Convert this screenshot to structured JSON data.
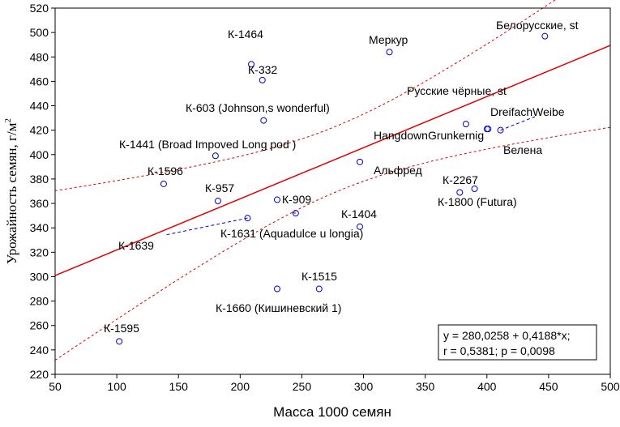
{
  "chart_data": {
    "type": "scatter",
    "xlabel": "Масса 1000 семян",
    "ylabel_main": "Урожайность семян, г/м",
    "ylabel_sup": "2",
    "xlim": [
      50,
      500
    ],
    "ylim": [
      220,
      520
    ],
    "xticks": [
      "50",
      "100",
      "150",
      "200",
      "250",
      "300",
      "350",
      "400",
      "450",
      "500"
    ],
    "yticks": [
      "220",
      "240",
      "260",
      "280",
      "300",
      "320",
      "340",
      "360",
      "380",
      "400",
      "420",
      "440",
      "460",
      "480",
      "500",
      "520"
    ],
    "grid": false,
    "colors": {
      "points": "#0000cc",
      "regression": "#e00000",
      "confidence": "#e00000",
      "leader": "#0000cc"
    },
    "regression": {
      "intercept": 280.0258,
      "slope": 0.4188
    },
    "equation_lines": [
      "y = 280,0258 + 0,4188*x;",
      "r = 0,5381; p = 0,0098"
    ],
    "points": [
      {
        "label": "К-1464",
        "x": 209,
        "y": 474
      },
      {
        "label": "К-332",
        "x": 218,
        "y": 461
      },
      {
        "label": "К-603 (Johnson,s wonderful)",
        "x": 219,
        "y": 428
      },
      {
        "label": "Меркур",
        "x": 321,
        "y": 484
      },
      {
        "label": "Белорусские, st",
        "x": 447,
        "y": 497
      },
      {
        "label": "Русские чёрные, st",
        "x": 383,
        "y": 425
      },
      {
        "label": "DreifachWeibe",
        "x": 411,
        "y": 420
      },
      {
        "label": "HangdownGrunkernig",
        "x": 400,
        "y": 421
      },
      {
        "label": "Велена",
        "x": 401,
        "y": 421
      },
      {
        "label": "К-1441 (Broad Impoved Long pod )",
        "x": 180,
        "y": 399
      },
      {
        "label": "Альфред",
        "x": 297,
        "y": 394
      },
      {
        "label": "К-1596",
        "x": 138,
        "y": 376
      },
      {
        "label": "К-957",
        "x": 182,
        "y": 362
      },
      {
        "label": "К-909",
        "x": 245,
        "y": 352
      },
      {
        "label": "К-1631 (Aquadulce u longia)",
        "x": 230,
        "y": 363
      },
      {
        "label": "К-1639",
        "x": 206,
        "y": 348
      },
      {
        "label": "К-1404",
        "x": 297,
        "y": 341
      },
      {
        "label": "К-2267",
        "x": 390,
        "y": 372
      },
      {
        "label": "К-1800 (Futura)",
        "x": 378,
        "y": 369
      },
      {
        "label": "К-1515",
        "x": 264,
        "y": 290
      },
      {
        "label": "К-1660 (Кишиневский 1)",
        "x": 230,
        "y": 290
      },
      {
        "label": "К-1595",
        "x": 102,
        "y": 247
      }
    ]
  }
}
